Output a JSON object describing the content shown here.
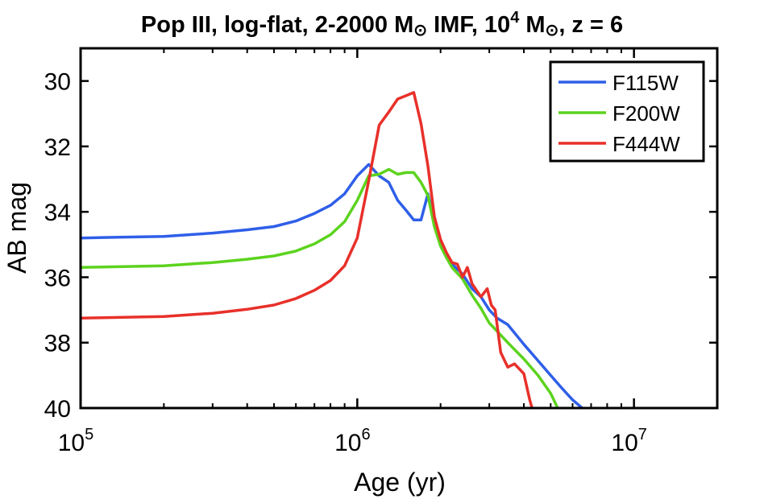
{
  "chart_data": {
    "type": "line",
    "title_parts": {
      "prefix": "Pop III, log-flat, 2-2000 M",
      "sun1": "⊙",
      "mid": " IMF, 10",
      "exp": "4",
      "m2": " M",
      "sun2": "⊙",
      "suffix": ", z = 6"
    },
    "xlabel": "Age (yr)",
    "ylabel": "AB mag",
    "xscale": "log",
    "xlim": [
      100000,
      20000000
    ],
    "ylim": [
      29,
      40
    ],
    "y_reversed": true,
    "yticks": [
      {
        "value": 30,
        "label": "30"
      },
      {
        "value": 32,
        "label": "32"
      },
      {
        "value": 34,
        "label": "34"
      },
      {
        "value": 36,
        "label": "36"
      },
      {
        "value": 38,
        "label": "38"
      },
      {
        "value": 40,
        "label": "40"
      }
    ],
    "xticks": [
      {
        "value": 100000,
        "base": "10",
        "exp": "5"
      },
      {
        "value": 1000000,
        "base": "10",
        "exp": "6"
      },
      {
        "value": 10000000,
        "base": "10",
        "exp": "7"
      }
    ],
    "legend_position": "top-right",
    "series": [
      {
        "name": "F115W",
        "color": "#2F5FE8",
        "x": [
          100000,
          200000,
          300000,
          400000,
          500000,
          600000,
          700000,
          800000,
          900000,
          1000000,
          1100000,
          1200000,
          1300000,
          1400000,
          1500000,
          1600000,
          1700000,
          1800000,
          1900000,
          2000000,
          2100000,
          2200000,
          2400000,
          2600000,
          2800000,
          3000000,
          3200000,
          3500000,
          4000000,
          4500000,
          5000000,
          5500000,
          6000000,
          6500000
        ],
        "y": [
          34.8,
          34.75,
          34.65,
          34.55,
          34.45,
          34.28,
          34.05,
          33.8,
          33.45,
          32.9,
          32.55,
          32.9,
          33.1,
          33.65,
          33.95,
          34.25,
          34.25,
          33.45,
          34.35,
          34.9,
          35.3,
          35.6,
          35.9,
          36.35,
          36.6,
          37.0,
          37.25,
          37.45,
          38.05,
          38.55,
          39.0,
          39.4,
          39.75,
          40.0
        ]
      },
      {
        "name": "F200W",
        "color": "#5CD31E",
        "x": [
          100000,
          200000,
          300000,
          400000,
          500000,
          600000,
          700000,
          800000,
          900000,
          1000000,
          1100000,
          1200000,
          1300000,
          1400000,
          1500000,
          1600000,
          1700000,
          1800000,
          1900000,
          2000000,
          2100000,
          2200000,
          2400000,
          2600000,
          2800000,
          3000000,
          3200000,
          3500000,
          4000000,
          4500000,
          5000000,
          5300000
        ],
        "y": [
          35.7,
          35.65,
          35.55,
          35.45,
          35.35,
          35.2,
          34.98,
          34.7,
          34.3,
          33.65,
          32.9,
          32.85,
          32.7,
          32.85,
          32.8,
          32.8,
          33.1,
          33.5,
          34.45,
          35.05,
          35.4,
          35.7,
          36.05,
          36.55,
          36.95,
          37.4,
          37.65,
          38.0,
          38.5,
          39.0,
          39.55,
          40.0
        ]
      },
      {
        "name": "F444W",
        "color": "#E8302A",
        "x": [
          100000,
          200000,
          300000,
          400000,
          500000,
          600000,
          700000,
          800000,
          900000,
          1000000,
          1100000,
          1200000,
          1300000,
          1400000,
          1500000,
          1600000,
          1700000,
          1800000,
          1900000,
          2000000,
          2100000,
          2200000,
          2300000,
          2400000,
          2500000,
          2600000,
          2800000,
          2950000,
          3050000,
          3150000,
          3300000,
          3500000,
          3700000,
          4000000,
          4200000,
          4300000
        ],
        "y": [
          37.25,
          37.2,
          37.1,
          36.98,
          36.85,
          36.65,
          36.4,
          36.1,
          35.65,
          34.8,
          33.05,
          31.35,
          30.95,
          30.55,
          30.45,
          30.35,
          31.3,
          32.6,
          34.15,
          34.85,
          35.25,
          35.55,
          35.6,
          36.0,
          35.7,
          36.2,
          36.6,
          36.35,
          36.85,
          37.0,
          38.3,
          38.75,
          38.65,
          38.95,
          39.75,
          40.05
        ]
      }
    ]
  }
}
